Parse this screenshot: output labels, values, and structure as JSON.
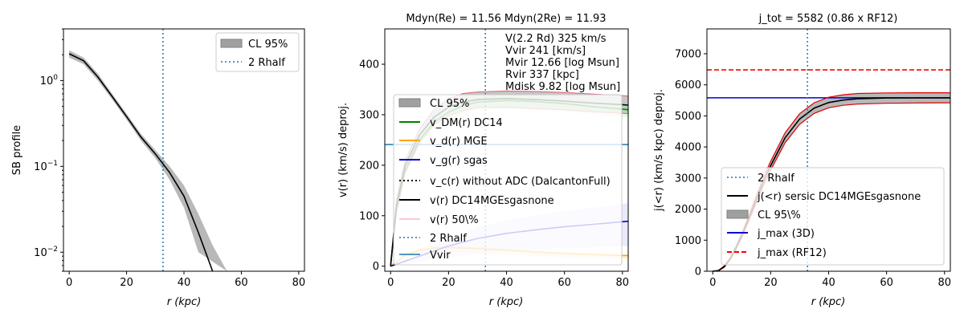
{
  "chart_data": [
    {
      "type": "line",
      "xlabel": "r (kpc)",
      "ylabel": "SB profile",
      "yscale": "log",
      "xlim": [
        -2,
        82
      ],
      "ylim": [
        0.006,
        4.0
      ],
      "xticks": [
        "0",
        "20",
        "40",
        "60",
        "80"
      ],
      "yticks": [
        "10^0",
        "10^-1",
        "10^-2"
      ],
      "legend_position": "upper right",
      "legend": [
        {
          "label": "CL 95%",
          "style": "band",
          "color": "#a0a0a0"
        },
        {
          "label": "2 Rhalf",
          "style": "dotted",
          "color": "#1f77b4"
        }
      ],
      "vline_x": 32.7,
      "series": [
        {
          "name": "median",
          "x": [
            0,
            5,
            10,
            15,
            20,
            25,
            30,
            35,
            40,
            45,
            50
          ],
          "y": [
            2.05,
            1.7,
            1.1,
            0.65,
            0.38,
            0.22,
            0.14,
            0.085,
            0.045,
            0.017,
            0.005
          ]
        },
        {
          "name": "CL upper",
          "x": [
            0,
            5,
            10,
            15,
            20,
            25,
            30,
            35,
            40,
            45,
            50,
            55
          ],
          "y": [
            2.25,
            1.85,
            1.2,
            0.7,
            0.41,
            0.24,
            0.155,
            0.1,
            0.06,
            0.028,
            0.012,
            0.005
          ]
        },
        {
          "name": "CL lower",
          "x": [
            0,
            5,
            10,
            15,
            20,
            25,
            30,
            35,
            40,
            45
          ],
          "y": [
            1.85,
            1.55,
            1.0,
            0.6,
            0.35,
            0.2,
            0.125,
            0.07,
            0.033,
            0.01
          ]
        }
      ]
    },
    {
      "type": "line",
      "title": "Mdyn(Re) = 11.56  Mdyn(2Re) = 11.93",
      "xlabel": "r (kpc)",
      "ylabel": "v(r) (km/s) deproj.",
      "xlim": [
        -2,
        82
      ],
      "ylim": [
        -10,
        470
      ],
      "xticks": [
        "0",
        "20",
        "40",
        "60",
        "80"
      ],
      "yticks": [
        "0",
        "100",
        "200",
        "300",
        "400"
      ],
      "info_lines": [
        "V(2.2 Rd) 325 km/s",
        "Vvir 241 [km/s]",
        "Mvir 12.66 [log Msun]",
        "Rvir 337 [kpc]",
        "Mdisk 9.82 [log Msun]"
      ],
      "legend_position": "center left",
      "legend": [
        {
          "label": "CL 95%",
          "style": "band",
          "color": "#a0a0a0"
        },
        {
          "label": "v_DM(r) DC14",
          "style": "solid",
          "color": "#008000"
        },
        {
          "label": "v_d(r) MGE",
          "style": "solid",
          "color": "#ffa500"
        },
        {
          "label": "v_g(r) sgas",
          "style": "solid",
          "color": "#0000cd"
        },
        {
          "label": "v_c(r) without ADC (DalcantonFull)",
          "style": "dotted",
          "color": "#000000"
        },
        {
          "label": "v(r) DC14MGEsgasnone",
          "style": "solid",
          "color": "#000000"
        },
        {
          "label": "v(r) 50\\%",
          "style": "solid",
          "color": "#ffb6c1"
        },
        {
          "label": "2 Rhalf",
          "style": "dotted",
          "color": "#1f77b4"
        },
        {
          "label": "Vvir",
          "style": "solid",
          "color": "#1f77b4"
        }
      ],
      "vline_x": 32.7,
      "hline_y": 241,
      "series": [
        {
          "name": "v(r) DC14MGEsgasnone",
          "x": [
            0,
            2,
            5,
            10,
            15,
            20,
            25,
            30,
            40,
            50,
            60,
            70,
            80,
            82
          ],
          "y": [
            0,
            120,
            200,
            260,
            295,
            315,
            325,
            330,
            332,
            330,
            327,
            323,
            320,
            319
          ]
        },
        {
          "name": "v_DM(r) DC14",
          "x": [
            0,
            2,
            5,
            10,
            15,
            20,
            25,
            30,
            40,
            50,
            60,
            70,
            80,
            82
          ],
          "y": [
            0,
            110,
            190,
            250,
            285,
            305,
            318,
            325,
            328,
            326,
            322,
            316,
            311,
            310
          ]
        },
        {
          "name": "v_d(r) MGE",
          "x": [
            0,
            5,
            10,
            15,
            20,
            25,
            30,
            40,
            50,
            60,
            70,
            80,
            82
          ],
          "y": [
            0,
            22,
            32,
            36,
            37,
            36,
            35,
            32,
            28,
            25,
            23,
            21,
            21
          ]
        },
        {
          "name": "v_g(r) sgas",
          "x": [
            0,
            10,
            20,
            30,
            40,
            50,
            60,
            70,
            80,
            82
          ],
          "y": [
            0,
            20,
            40,
            55,
            65,
            72,
            78,
            83,
            88,
            89
          ]
        },
        {
          "name": "CL upper",
          "x": [
            0,
            2,
            5,
            10,
            15,
            20,
            25,
            30,
            40,
            50,
            60,
            70,
            80,
            82
          ],
          "y": [
            0,
            130,
            210,
            272,
            310,
            332,
            342,
            345,
            347,
            346,
            344,
            341,
            338,
            337
          ]
        },
        {
          "name": "CL lower",
          "x": [
            0,
            2,
            5,
            10,
            15,
            20,
            25,
            30,
            40,
            50,
            60,
            70,
            80,
            82
          ],
          "y": [
            0,
            105,
            185,
            245,
            280,
            298,
            308,
            314,
            315,
            312,
            310,
            306,
            303,
            302
          ]
        }
      ]
    },
    {
      "type": "line",
      "title": "j_tot = 5582 (0.86 x RF12)",
      "xlabel": "r (kpc)",
      "ylabel": "j(<r) (km/s kpc) deproj.",
      "xlim": [
        -2,
        82
      ],
      "ylim": [
        0,
        7800
      ],
      "xticks": [
        "0",
        "20",
        "40",
        "60",
        "80"
      ],
      "yticks": [
        "0",
        "1000",
        "2000",
        "3000",
        "4000",
        "5000",
        "6000",
        "7000"
      ],
      "legend_position": "lower right",
      "legend": [
        {
          "label": "2 Rhalf",
          "style": "dotted",
          "color": "#1f77b4"
        },
        {
          "label": "j(<r) sersic DC14MGEsgasnone",
          "style": "solid",
          "color": "#000000"
        },
        {
          "label": "CL 95\\%",
          "style": "band",
          "color": "#a0a0a0"
        },
        {
          "label": "j_max (3D)",
          "style": "solid",
          "color": "#0000cd"
        },
        {
          "label": "j_max (RF12)",
          "style": "dashed",
          "color": "#ff0000"
        }
      ],
      "vline_x": 32.7,
      "hlines": [
        {
          "name": "j_max (3D)",
          "y": 5582
        },
        {
          "name": "j_max (RF12)",
          "y": 6480
        }
      ],
      "series": [
        {
          "name": "j(<r) median",
          "x": [
            0,
            2,
            4,
            6,
            8,
            10,
            12,
            15,
            18,
            20,
            25,
            30,
            35,
            40,
            45,
            50,
            60,
            70,
            80,
            82
          ],
          "y": [
            0,
            20,
            150,
            400,
            750,
            1150,
            1600,
            2300,
            3000,
            3400,
            4300,
            4900,
            5250,
            5430,
            5510,
            5550,
            5575,
            5580,
            5582,
            5582
          ]
        },
        {
          "name": "CL upper",
          "x": [
            0,
            2,
            4,
            6,
            8,
            10,
            12,
            15,
            18,
            20,
            25,
            30,
            35,
            40,
            45,
            50,
            60,
            70,
            80,
            82
          ],
          "y": [
            0,
            25,
            170,
            430,
            800,
            1210,
            1680,
            2410,
            3130,
            3540,
            4460,
            5070,
            5420,
            5600,
            5680,
            5720,
            5740,
            5745,
            5745,
            5745
          ]
        },
        {
          "name": "CL lower",
          "x": [
            0,
            2,
            4,
            6,
            8,
            10,
            12,
            15,
            18,
            20,
            25,
            30,
            35,
            40,
            45,
            50,
            60,
            70,
            80,
            82
          ],
          "y": [
            0,
            15,
            130,
            370,
            700,
            1090,
            1520,
            2190,
            2870,
            3260,
            4140,
            4730,
            5080,
            5260,
            5340,
            5380,
            5405,
            5415,
            5420,
            5420
          ]
        }
      ]
    }
  ]
}
